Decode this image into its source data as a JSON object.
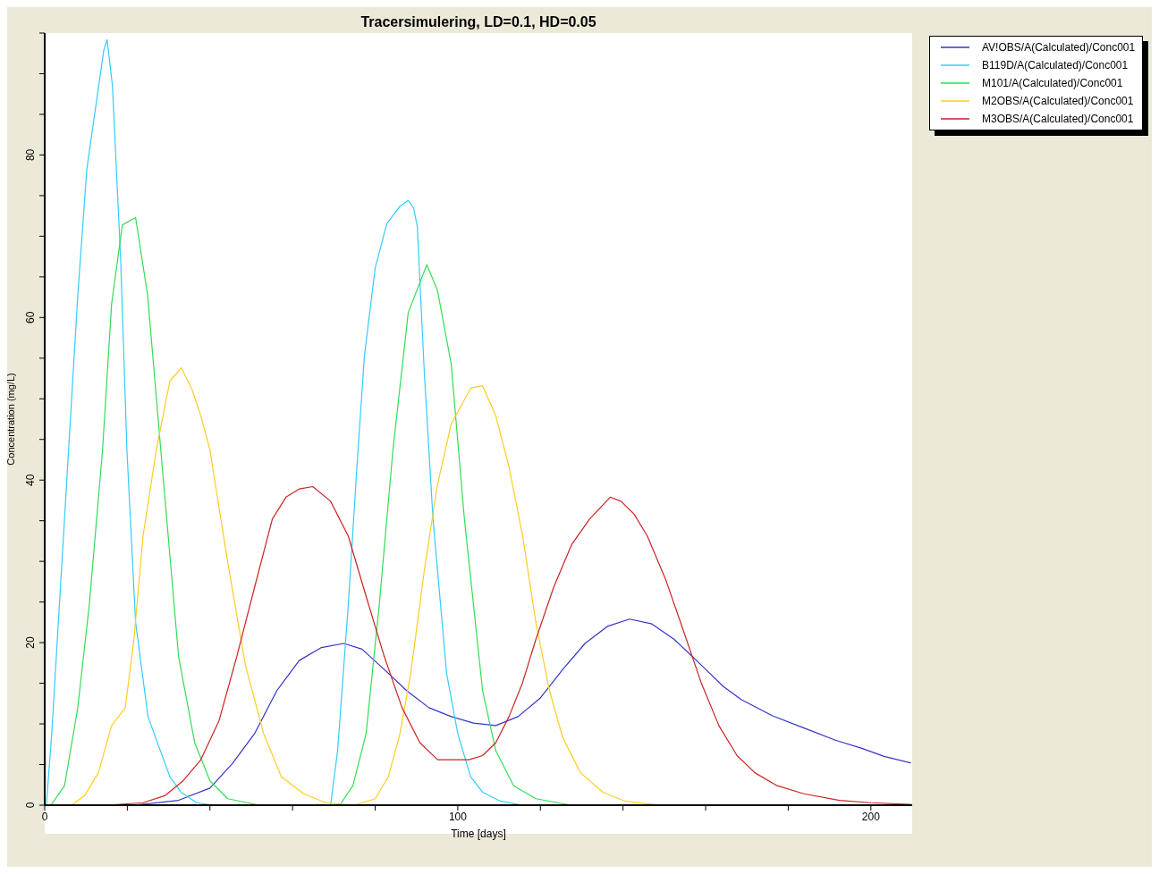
{
  "chart_data": {
    "type": "line",
    "title": "Tracersimulering, LD=0.1, HD=0.05",
    "xlabel": "Time  [days]",
    "ylabel": "Concentration (mg/L)",
    "xlim": [
      0,
      210
    ],
    "ylim": [
      0,
      95
    ],
    "xticks": [
      0,
      {
        "value": 20,
        "label": null
      },
      {
        "value": 40,
        "label": null
      },
      {
        "value": 60,
        "label": null
      },
      {
        "value": 80,
        "label": null
      },
      100,
      {
        "value": 120,
        "label": null
      },
      {
        "value": 140,
        "label": null
      },
      {
        "value": 160,
        "label": null
      },
      {
        "value": 180,
        "label": null
      },
      200
    ],
    "yticks": [
      0,
      {
        "value": 5,
        "label": null
      },
      {
        "value": 10,
        "label": null
      },
      {
        "value": 15,
        "label": null
      },
      20,
      {
        "value": 25,
        "label": null
      },
      {
        "value": 30,
        "label": null
      },
      {
        "value": 35,
        "label": null
      },
      40,
      {
        "value": 45,
        "label": null
      },
      {
        "value": 50,
        "label": null
      },
      {
        "value": 55,
        "label": null
      },
      60,
      {
        "value": 65,
        "label": null
      },
      {
        "value": 70,
        "label": null
      },
      {
        "value": 75,
        "label": null
      },
      80,
      {
        "value": 85,
        "label": null
      },
      {
        "value": 90,
        "label": null
      },
      {
        "value": 95,
        "label": null
      }
    ],
    "grid": false,
    "legend": "top right",
    "marker": "none",
    "line_style": "solid",
    "series": [
      {
        "name": "AV!OBS/A(Calculated)/Conc001",
        "color": "#3333cc",
        "x": [
          0,
          21.6,
          32.4,
          40,
          45.4,
          50.8,
          56.2,
          61.6,
          67,
          72.4,
          76.8,
          82.2,
          87.6,
          93,
          98.4,
          103.8,
          109.2,
          114.6,
          120,
          125.4,
          130.8,
          136.2,
          141.6,
          147,
          152.4,
          157.8,
          164.3,
          168.6,
          176.2,
          183.8,
          191.4,
          197.8,
          203.2,
          209.7
        ],
        "values": [
          0,
          0,
          0.6,
          2.1,
          5.1,
          8.8,
          14.1,
          17.8,
          19.4,
          19.9,
          19.2,
          16.7,
          14.1,
          12,
          10.9,
          10.1,
          9.8,
          10.9,
          13.2,
          16.7,
          19.9,
          22,
          22.9,
          22.3,
          20.4,
          17.8,
          14.6,
          13,
          11,
          9.5,
          8,
          7,
          6,
          5.2
        ]
      },
      {
        "name": "B119D/A(Calculated)/Conc001",
        "color": "#33ccff",
        "x": [
          0,
          0.4,
          1.7,
          8,
          10.2,
          14.3,
          15.1,
          16.4,
          18.4,
          19.9,
          22,
          25,
          28,
          30.3,
          33,
          36.8,
          41,
          69.2,
          70.9,
          73.5,
          75.7,
          77.4,
          80,
          82.8,
          86,
          88,
          89.3,
          90.2,
          91.9,
          94,
          97.3,
          100,
          103.1,
          106,
          110.3,
          115.7,
          209.7
        ],
        "values": [
          0,
          0,
          8.8,
          62.7,
          78.3,
          92.9,
          94.2,
          88.5,
          67,
          43.7,
          22.5,
          10.9,
          6.7,
          3.5,
          1.6,
          0.3,
          0,
          0,
          6.7,
          24.7,
          42.6,
          55.3,
          66.1,
          71.5,
          73.7,
          74.4,
          73.5,
          71.2,
          53.2,
          35.2,
          16.2,
          8.8,
          3.5,
          1.6,
          0.5,
          0,
          0
        ]
      },
      {
        "name": "M101/A(Calculated)/Conc001",
        "color": "#33dd55",
        "x": [
          0,
          1.5,
          4.8,
          8,
          10.8,
          14,
          16.2,
          18.8,
          22,
          24.9,
          28.1,
          32.4,
          36.3,
          40,
          44.3,
          52,
          71.4,
          74.6,
          77.8,
          81,
          84.3,
          88,
          92.5,
          95.1,
          98.4,
          101.6,
          106,
          109.2,
          113.5,
          118.9,
          127.6,
          209.7
        ],
        "values": [
          0,
          0,
          2.4,
          12,
          24.7,
          43.7,
          61.7,
          71.4,
          72.3,
          62.8,
          43.7,
          18.3,
          7.7,
          3,
          0.8,
          0,
          0,
          2.4,
          8.8,
          24.7,
          43.7,
          60.6,
          66.5,
          63.3,
          54.3,
          35.2,
          14.1,
          6.7,
          2.4,
          0.8,
          0,
          0
        ]
      },
      {
        "name": "M2OBS/A(Calculated)/Conc001",
        "color": "#ffcc22",
        "x": [
          0,
          6.5,
          9.7,
          13,
          16.2,
          19.5,
          21.6,
          23.8,
          27,
          30.3,
          33.1,
          35.7,
          37.8,
          40,
          44.3,
          48.6,
          53,
          57.3,
          62.7,
          68.1,
          75,
          80,
          83.2,
          86,
          88.6,
          91.9,
          95.1,
          98.4,
          103.1,
          106,
          109.2,
          112.4,
          115.7,
          118.9,
          122.2,
          125.4,
          129.7,
          135.1,
          140.5,
          149.2,
          209.7
        ],
        "values": [
          0,
          0,
          1.2,
          4,
          9.8,
          12,
          20.4,
          33.1,
          43.7,
          52.2,
          53.8,
          51.1,
          47.9,
          43.7,
          29.9,
          17.2,
          8.8,
          3.5,
          1.4,
          0.3,
          0,
          0.8,
          3.5,
          8.8,
          16.2,
          28.9,
          39.5,
          46.9,
          51.3,
          51.6,
          47.9,
          41.6,
          33.1,
          22.5,
          14.1,
          8.3,
          4,
          1.6,
          0.5,
          0,
          0
        ]
      },
      {
        "name": "M3OBS/A(Calculated)/Conc001",
        "color": "#cc2222",
        "x": [
          0,
          15.1,
          23.8,
          29.2,
          33.5,
          37.8,
          42.2,
          46.5,
          50.8,
          55.1,
          58.4,
          61.6,
          64.9,
          69.2,
          73.5,
          77.8,
          82.2,
          86.5,
          90.8,
          95.1,
          102.7,
          106,
          109.2,
          112.4,
          115.7,
          118.9,
          123.2,
          127.6,
          131.9,
          136.9,
          139.5,
          142.7,
          145.9,
          150.3,
          154.6,
          158.9,
          163.2,
          167.6,
          171.9,
          177.3,
          183.8,
          192.4,
          200,
          209.7
        ],
        "values": [
          0,
          0,
          0.3,
          1.2,
          3,
          5.6,
          10.4,
          18.3,
          26.8,
          35.2,
          37.9,
          38.9,
          39.2,
          37.4,
          33.1,
          25.7,
          18.3,
          12,
          7.7,
          5.6,
          5.6,
          6.1,
          7.7,
          10.9,
          15.1,
          20.4,
          26.8,
          32.1,
          35.2,
          37.9,
          37.4,
          35.8,
          33.1,
          27.8,
          21.5,
          15.1,
          9.8,
          6.1,
          4,
          2.4,
          1.4,
          0.6,
          0.3,
          0.1
        ]
      }
    ]
  }
}
